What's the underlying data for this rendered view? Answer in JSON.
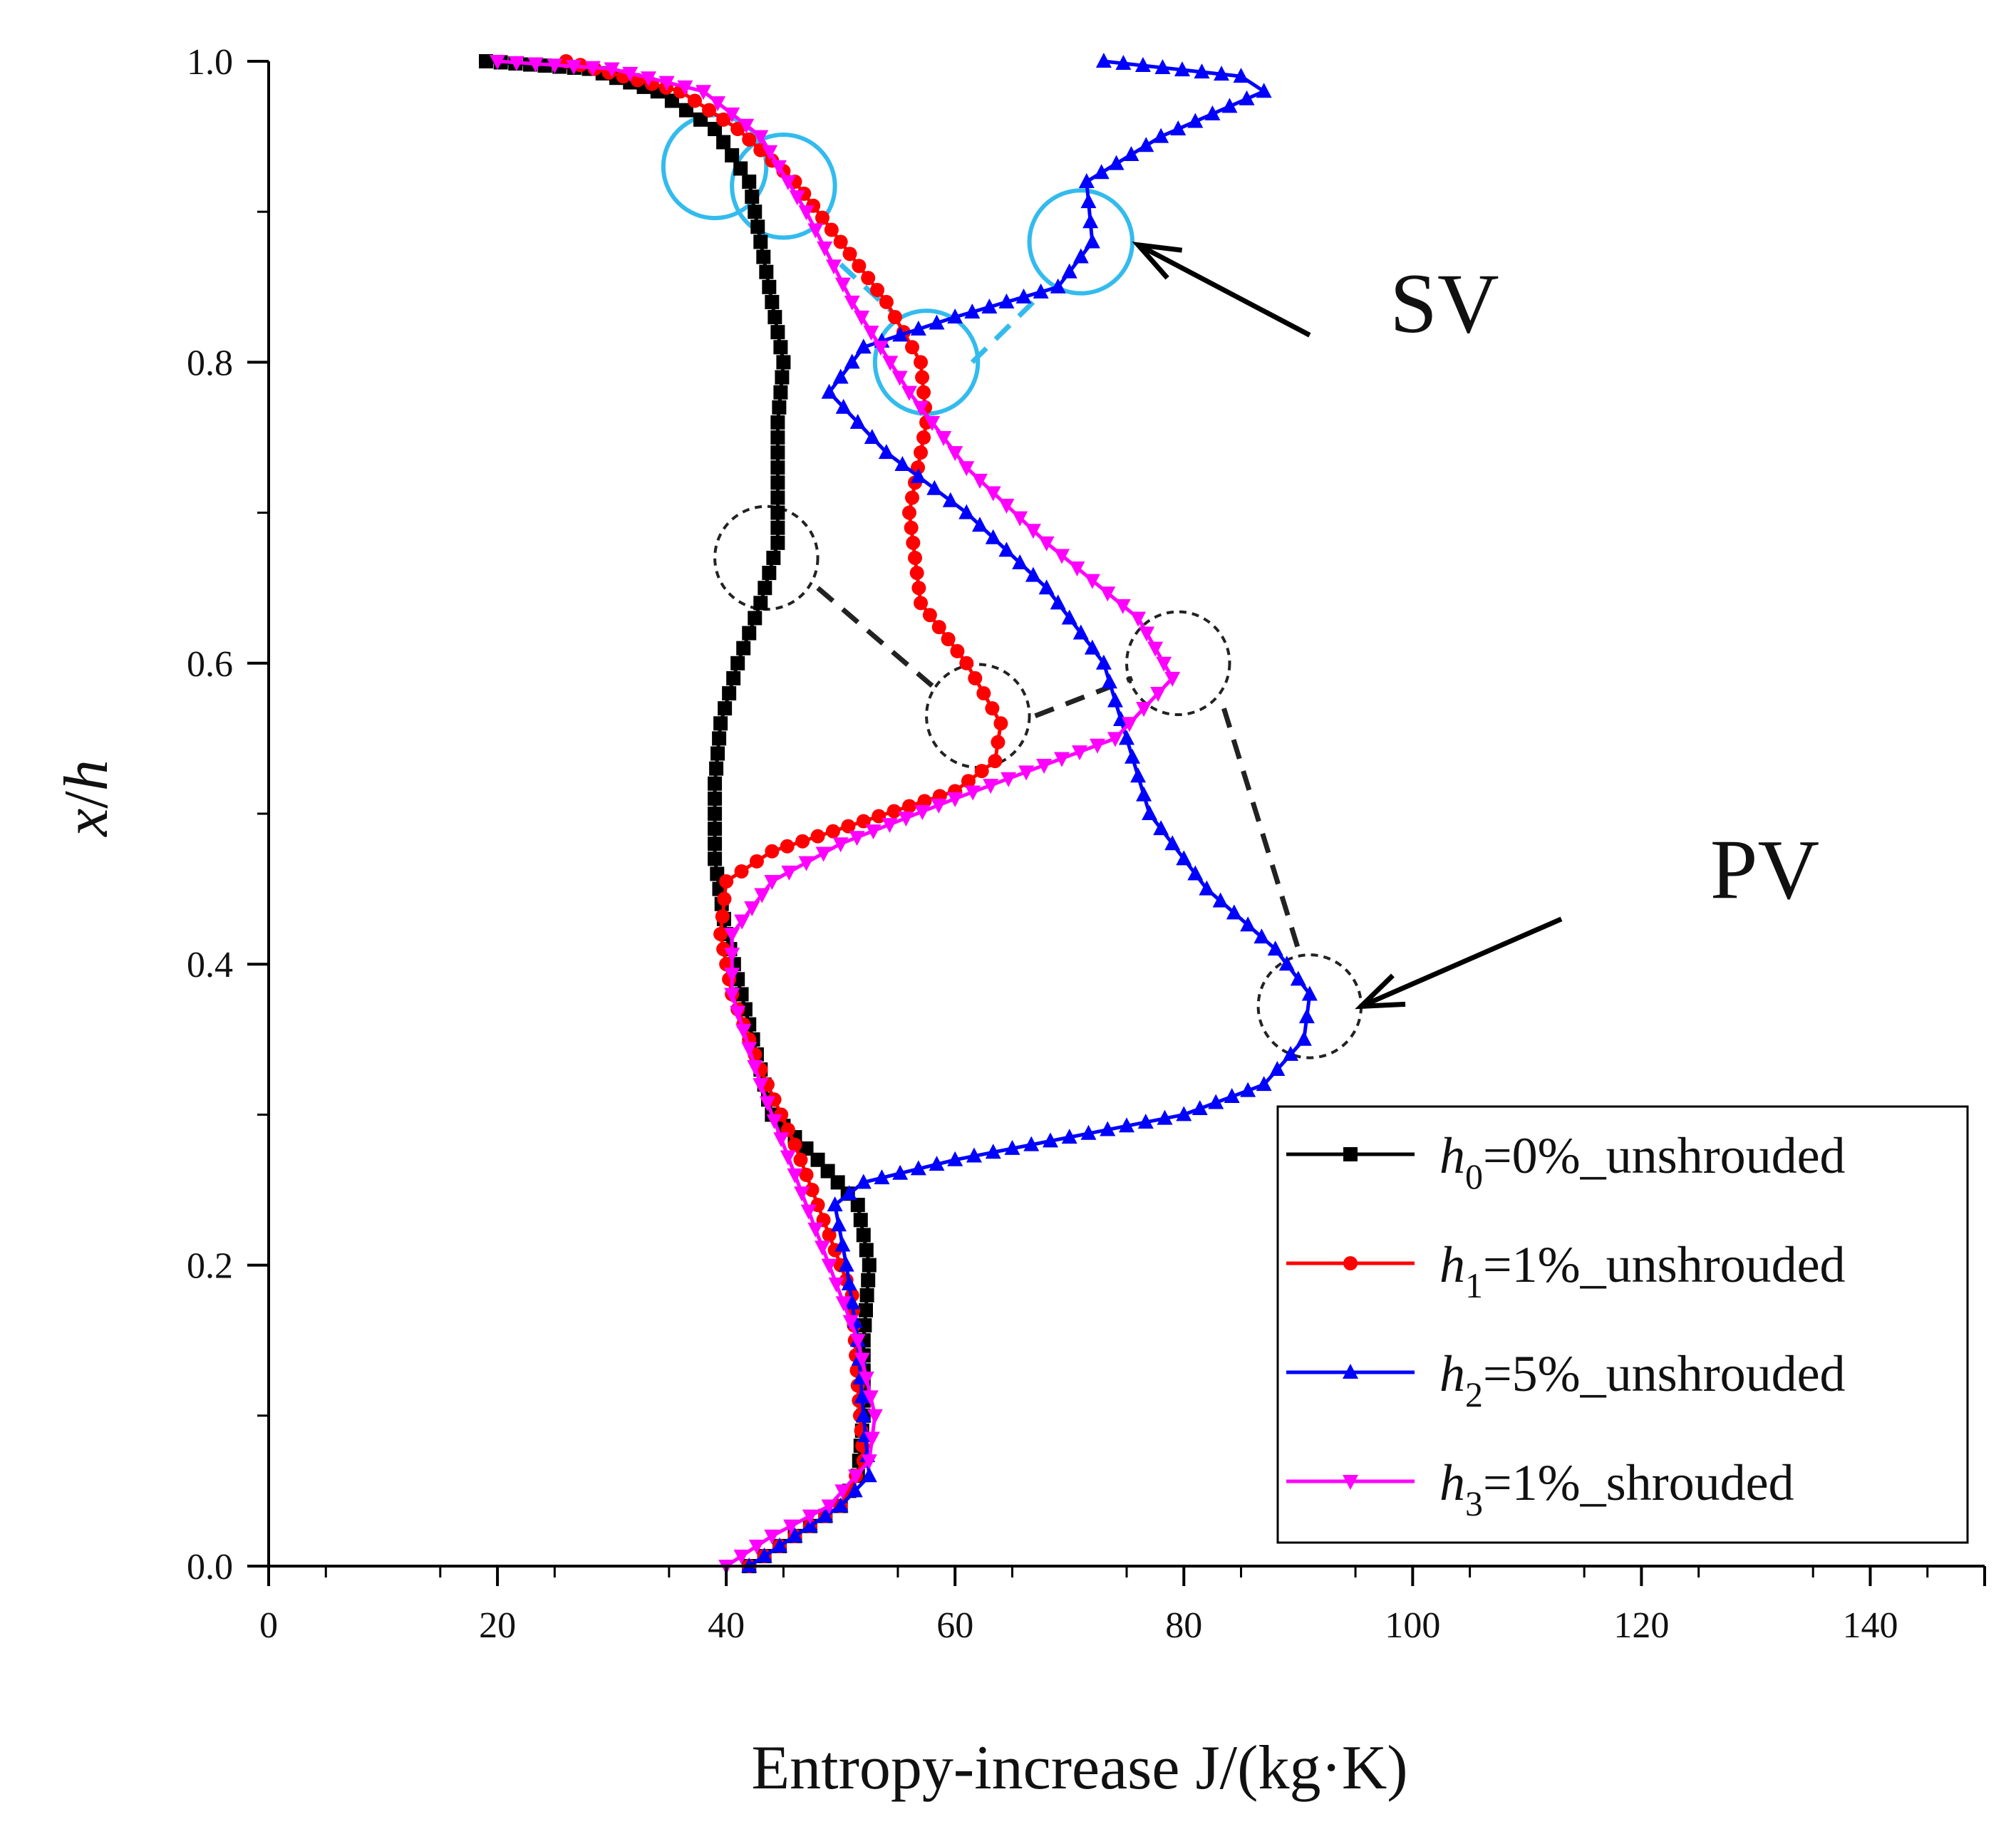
{
  "chart_data": {
    "type": "line",
    "title": "",
    "xlabel": "Entropy-increase J/(kg·K)",
    "ylabel_main": "x",
    "ylabel_slash": "/",
    "ylabel_denom": "h",
    "xlim": [
      0,
      150
    ],
    "ylim": [
      0.0,
      1.0
    ],
    "x_major_ticks": [
      0,
      20,
      40,
      60,
      80,
      100,
      120,
      140
    ],
    "x_tick_labels": [
      "0",
      "20",
      "40",
      "60",
      "80",
      "100",
      "120",
      "140"
    ],
    "y_major_ticks": [
      0.0,
      0.2,
      0.4,
      0.6,
      0.8,
      1.0
    ],
    "y_tick_labels": [
      "0.0",
      "0.2",
      "0.4",
      "0.6",
      "0.8",
      "1.0"
    ],
    "grid": false,
    "legend_position": "bottom-right",
    "series": [
      {
        "name": "h0=0%_unshrouded",
        "legend_h": "h",
        "legend_sub": "0",
        "legend_rest": "=0%_unshrouded",
        "color": "#000000",
        "marker": "square",
        "points": [
          [
            42,
            0.0
          ],
          [
            46,
            0.02
          ],
          [
            50,
            0.04
          ],
          [
            51.5,
            0.06
          ],
          [
            52,
            0.1
          ],
          [
            52,
            0.15
          ],
          [
            52.5,
            0.2
          ],
          [
            51.5,
            0.24
          ],
          [
            48,
            0.27
          ],
          [
            44,
            0.3
          ],
          [
            42,
            0.36
          ],
          [
            40,
            0.42
          ],
          [
            39,
            0.47
          ],
          [
            39,
            0.52
          ],
          [
            39.5,
            0.56
          ],
          [
            41,
            0.6
          ],
          [
            43,
            0.64
          ],
          [
            44.5,
            0.68
          ],
          [
            44.5,
            0.72
          ],
          [
            44.5,
            0.76
          ],
          [
            45,
            0.8
          ],
          [
            44,
            0.84
          ],
          [
            43,
            0.88
          ],
          [
            42,
            0.92
          ],
          [
            39,
            0.955
          ],
          [
            34,
            0.98
          ],
          [
            28,
            0.995
          ],
          [
            19,
            1.0
          ]
        ]
      },
      {
        "name": "h1=1%_unshrouded",
        "legend_h": "h",
        "legend_sub": "1",
        "legend_rest": "=1%_unshrouded",
        "color": "#ff0000",
        "marker": "circle",
        "points": [
          [
            42,
            0.0
          ],
          [
            46,
            0.02
          ],
          [
            50,
            0.04
          ],
          [
            52,
            0.07
          ],
          [
            51.5,
            0.12
          ],
          [
            51,
            0.18
          ],
          [
            49,
            0.22
          ],
          [
            46,
            0.28
          ],
          [
            43,
            0.33
          ],
          [
            40.5,
            0.38
          ],
          [
            39.5,
            0.42
          ],
          [
            40,
            0.455
          ],
          [
            44,
            0.475
          ],
          [
            52,
            0.495
          ],
          [
            60,
            0.515
          ],
          [
            63.5,
            0.535
          ],
          [
            64,
            0.56
          ],
          [
            61,
            0.6
          ],
          [
            57,
            0.64
          ],
          [
            56,
            0.7
          ],
          [
            57.5,
            0.76
          ],
          [
            57,
            0.8
          ],
          [
            54,
            0.84
          ],
          [
            50,
            0.88
          ],
          [
            46,
            0.92
          ],
          [
            41,
            0.955
          ],
          [
            36,
            0.98
          ],
          [
            26,
            1.0
          ]
        ]
      },
      {
        "name": "h2=5%_unshrouded",
        "legend_h": "h",
        "legend_sub": "2",
        "legend_rest": "=5%_unshrouded",
        "color": "#0000ff",
        "marker": "triangle-up",
        "points": [
          [
            42,
            0.0
          ],
          [
            46,
            0.02
          ],
          [
            50,
            0.04
          ],
          [
            52.5,
            0.06
          ],
          [
            52,
            0.1
          ],
          [
            51.5,
            0.15
          ],
          [
            50.5,
            0.2
          ],
          [
            49.5,
            0.24
          ],
          [
            52,
            0.255
          ],
          [
            60,
            0.27
          ],
          [
            70,
            0.285
          ],
          [
            80,
            0.3
          ],
          [
            87,
            0.32
          ],
          [
            90.5,
            0.35
          ],
          [
            91,
            0.38
          ],
          [
            88,
            0.41
          ],
          [
            82,
            0.45
          ],
          [
            77,
            0.5
          ],
          [
            75,
            0.55
          ],
          [
            73,
            0.6
          ],
          [
            68,
            0.65
          ],
          [
            61,
            0.7
          ],
          [
            54,
            0.74
          ],
          [
            49,
            0.78
          ],
          [
            52,
            0.81
          ],
          [
            60,
            0.83
          ],
          [
            69,
            0.85
          ],
          [
            72,
            0.88
          ],
          [
            71.5,
            0.92
          ],
          [
            78,
            0.95
          ],
          [
            87,
            0.98
          ],
          [
            85,
            0.99
          ],
          [
            73,
            1.0
          ]
        ]
      },
      {
        "name": "h3=1%_shrouded",
        "legend_h": "h",
        "legend_sub": "3",
        "legend_rest": "=1%_shrouded",
        "color": "#ff00ff",
        "marker": "triangle-down",
        "points": [
          [
            40,
            0.0
          ],
          [
            44,
            0.02
          ],
          [
            49,
            0.04
          ],
          [
            52.5,
            0.07
          ],
          [
            53,
            0.1
          ],
          [
            51.5,
            0.15
          ],
          [
            49,
            0.2
          ],
          [
            46,
            0.26
          ],
          [
            43,
            0.32
          ],
          [
            40.5,
            0.38
          ],
          [
            40.5,
            0.42
          ],
          [
            44,
            0.455
          ],
          [
            50,
            0.48
          ],
          [
            60,
            0.51
          ],
          [
            74,
            0.55
          ],
          [
            79,
            0.59
          ],
          [
            76,
            0.63
          ],
          [
            68,
            0.68
          ],
          [
            61,
            0.73
          ],
          [
            56,
            0.78
          ],
          [
            51,
            0.84
          ],
          [
            47,
            0.9
          ],
          [
            43,
            0.95
          ],
          [
            38,
            0.98
          ],
          [
            30,
            0.995
          ],
          [
            20,
            1.0
          ]
        ]
      }
    ],
    "annotations": [
      {
        "label": "SV",
        "text_at": [
          98,
          0.82
        ],
        "arrow_from": [
          91,
          0.818
        ],
        "arrow_to": [
          76,
          0.878
        ]
      },
      {
        "label": "PV",
        "text_at": [
          126,
          0.444
        ],
        "arrow_from": [
          113,
          0.43
        ],
        "arrow_to": [
          95.5,
          0.372
        ]
      }
    ],
    "sv_circles": [
      {
        "center": [
          39,
          0.93
        ],
        "radius": 4.5
      },
      {
        "center": [
          45,
          0.917
        ],
        "radius": 4.5
      },
      {
        "center": [
          57.5,
          0.8
        ],
        "radius": 4.5
      },
      {
        "center": [
          71,
          0.88
        ],
        "radius": 4.5
      }
    ],
    "sv_connectors": [
      [
        [
          50,
          0.865
        ],
        [
          55,
          0.83
        ]
      ],
      [
        [
          61.5,
          0.8
        ],
        [
          67.5,
          0.845
        ]
      ]
    ],
    "pv_circles": [
      {
        "center": [
          43.5,
          0.67
        ],
        "radius": 4.5
      },
      {
        "center": [
          62,
          0.565
        ],
        "radius": 4.5
      },
      {
        "center": [
          79.5,
          0.6
        ],
        "radius": 4.5
      },
      {
        "center": [
          91,
          0.372
        ],
        "radius": 4.5
      }
    ],
    "pv_connectors": [
      [
        [
          48,
          0.65
        ],
        [
          58,
          0.585
        ]
      ],
      [
        [
          67,
          0.565
        ],
        [
          75.5,
          0.59
        ]
      ],
      [
        [
          83.5,
          0.57
        ],
        [
          90,
          0.41
        ]
      ]
    ]
  }
}
